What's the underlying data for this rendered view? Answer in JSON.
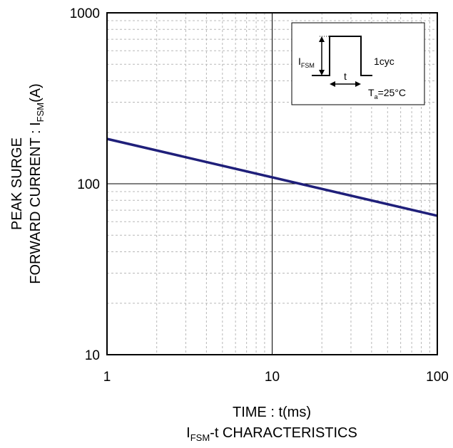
{
  "chart_data": {
    "type": "line",
    "x_scale": "log",
    "y_scale": "log",
    "xlim": [
      1,
      100
    ],
    "ylim": [
      10,
      1000
    ],
    "x_ticks": [
      "1",
      "10",
      "100"
    ],
    "y_ticks": [
      "10",
      "100",
      "1000"
    ],
    "xlabel": "TIME : t(ms)",
    "ylabel_line1": "PEAK SURGE",
    "ylabel_line2_prefix": "FORWARD CURRENT : I",
    "ylabel_line2_sub": "FSM",
    "ylabel_line2_suffix": "(A)",
    "caption_prefix": "I",
    "caption_sub": "FSM",
    "caption_suffix": "-t CHARACTERISTICS",
    "grid": true,
    "series": [
      {
        "color": "#1f1f7a",
        "x": [
          1,
          100
        ],
        "y": [
          183,
          65
        ]
      }
    ],
    "inset": {
      "ifsm_main": "I",
      "ifsm_sub": "FSM",
      "cycle_label": "1cyc",
      "t_label": "t",
      "ta_main": "T",
      "ta_sub": "a",
      "ta_value": "=25°C"
    }
  }
}
